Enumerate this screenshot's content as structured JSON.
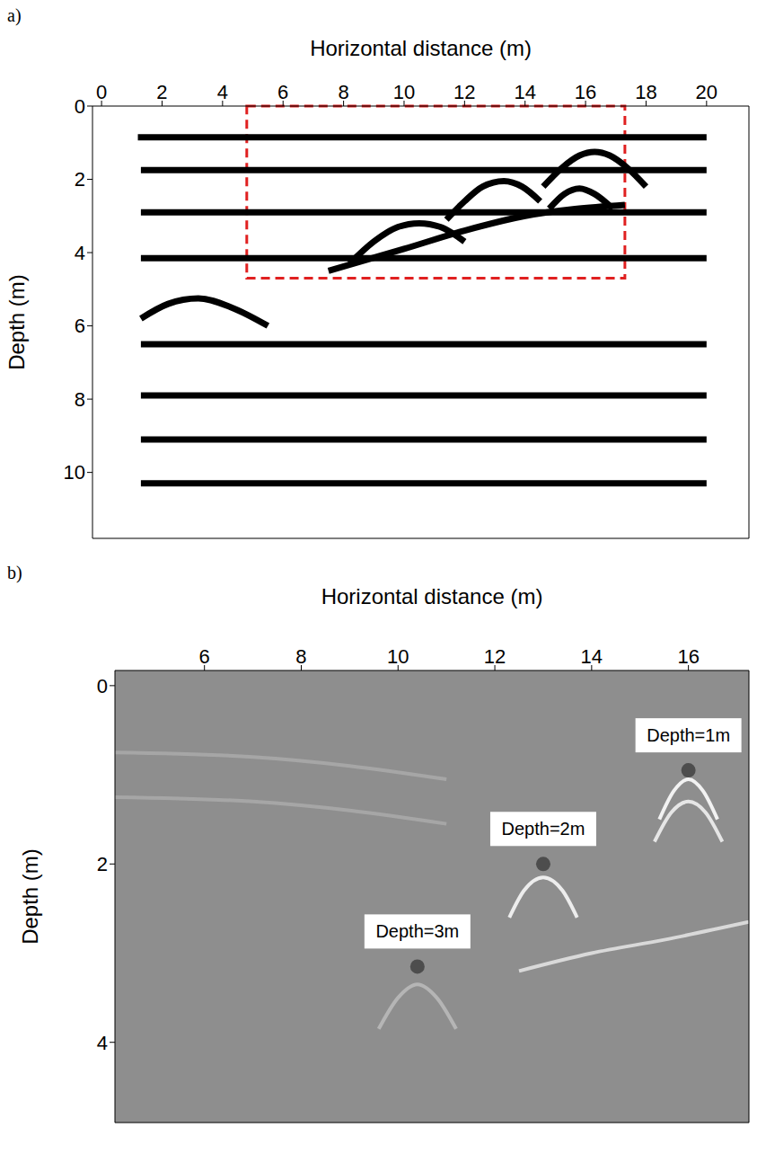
{
  "chart_data": [
    {
      "type": "line",
      "panel": "a)",
      "x_label": "Horizontal distance (m)",
      "y_label": "Depth (m)",
      "xlim": [
        -0.3,
        21.4
      ],
      "xticks": [
        0,
        2,
        4,
        6,
        8,
        10,
        12,
        14,
        16,
        18,
        20
      ],
      "ylim": [
        0,
        11.8
      ],
      "yticks": [
        0,
        2,
        4,
        6,
        8,
        10
      ],
      "series": [
        {
          "color": "#000000",
          "x": [
            1.2,
            20
          ],
          "values": [
            0.85,
            0.85
          ]
        },
        {
          "color": "#000000",
          "x": [
            1.3,
            20
          ],
          "values": [
            1.75,
            1.75
          ]
        },
        {
          "color": "#000000",
          "x": [
            1.3,
            20
          ],
          "values": [
            2.9,
            2.9
          ]
        },
        {
          "color": "#000000",
          "x": [
            1.3,
            20
          ],
          "values": [
            4.15,
            4.15
          ]
        },
        {
          "color": "#000000",
          "x": [
            1.3,
            20
          ],
          "values": [
            6.5,
            6.5
          ]
        },
        {
          "color": "#000000",
          "x": [
            1.3,
            20
          ],
          "values": [
            7.9,
            7.9
          ]
        },
        {
          "color": "#000000",
          "x": [
            1.3,
            20
          ],
          "values": [
            9.1,
            9.1
          ]
        },
        {
          "color": "#000000",
          "x": [
            1.3,
            20
          ],
          "values": [
            10.3,
            10.3
          ]
        },
        {
          "color": "#000000",
          "x": [
            14.6,
            15.2,
            15.8,
            16.3,
            16.8,
            17.4,
            18
          ],
          "values": [
            2.2,
            1.7,
            1.35,
            1.25,
            1.35,
            1.7,
            2.2
          ]
        },
        {
          "color": "#000000",
          "x": [
            11.4,
            12,
            12.6,
            13.3,
            13.9,
            14.5
          ],
          "values": [
            3.1,
            2.6,
            2.2,
            2.05,
            2.2,
            2.6
          ]
        },
        {
          "color": "#000000",
          "x": [
            14.8,
            15.3,
            15.8,
            16.3,
            16.9
          ],
          "values": [
            2.8,
            2.4,
            2.25,
            2.4,
            2.8
          ]
        },
        {
          "color": "#000000",
          "x": [
            8.2,
            9,
            9.8,
            10.5,
            11.2,
            12
          ],
          "values": [
            4.3,
            3.7,
            3.3,
            3.2,
            3.3,
            3.7
          ]
        },
        {
          "color": "#000000",
          "x": [
            7.5,
            10,
            12,
            14,
            17.3
          ],
          "values": [
            4.5,
            3.9,
            3.4,
            3.0,
            2.7
          ]
        },
        {
          "color": "#000000",
          "x": [
            1.3,
            2.2,
            3.2,
            4.3,
            5.5
          ],
          "values": [
            5.8,
            5.4,
            5.25,
            5.5,
            6.0
          ]
        }
      ],
      "highlight": {
        "x": [
          4.8,
          17.3
        ],
        "y": [
          0,
          4.7
        ],
        "color": "#e02020",
        "line_style": "dashed"
      }
    },
    {
      "type": "line",
      "panel": "b)",
      "x_label": "Horizontal distance (m)",
      "y_label": "Depth (m)",
      "xlim": [
        4.15,
        17.25
      ],
      "xticks": [
        6,
        8,
        10,
        12,
        14,
        16
      ],
      "ylim": [
        -0.17,
        4.9
      ],
      "yticks": [
        0,
        2,
        4
      ],
      "series": [
        {
          "color": "#a6a6a6",
          "x": [
            4.15,
            7,
            9,
            11
          ],
          "values": [
            0.75,
            0.8,
            0.9,
            1.05
          ]
        },
        {
          "color": "#a6a6a6",
          "x": [
            4.15,
            7,
            9,
            11
          ],
          "values": [
            1.25,
            1.3,
            1.4,
            1.55
          ]
        },
        {
          "color": "#f2f2f2",
          "x": [
            15.4,
            15.7,
            16,
            16.3,
            16.6
          ],
          "values": [
            1.5,
            1.18,
            1.05,
            1.18,
            1.5
          ]
        },
        {
          "color": "#e6e6e6",
          "x": [
            15.3,
            15.65,
            16,
            16.35,
            16.7
          ],
          "values": [
            1.75,
            1.42,
            1.3,
            1.42,
            1.75
          ]
        },
        {
          "color": "#ededed",
          "x": [
            12.3,
            12.6,
            13,
            13.4,
            13.7
          ],
          "values": [
            2.6,
            2.3,
            2.15,
            2.3,
            2.6
          ]
        },
        {
          "color": "#b5b5b5",
          "x": [
            9.6,
            10,
            10.4,
            10.8,
            11.2
          ],
          "values": [
            3.85,
            3.5,
            3.35,
            3.5,
            3.85
          ]
        },
        {
          "color": "#d9d9d9",
          "x": [
            12.5,
            14,
            15.5,
            17.25
          ],
          "values": [
            3.2,
            3.0,
            2.85,
            2.65
          ]
        }
      ],
      "annotations": [
        {
          "text": "Depth=1m",
          "x": 16,
          "y": 0.95,
          "color": "#4d4d4d"
        },
        {
          "text": "Depth=2m",
          "x": 13,
          "y": 2.0,
          "color": "#4d4d4d"
        },
        {
          "text": "Depth=3m",
          "x": 10.4,
          "y": 3.15,
          "color": "#4d4d4d"
        }
      ]
    }
  ]
}
